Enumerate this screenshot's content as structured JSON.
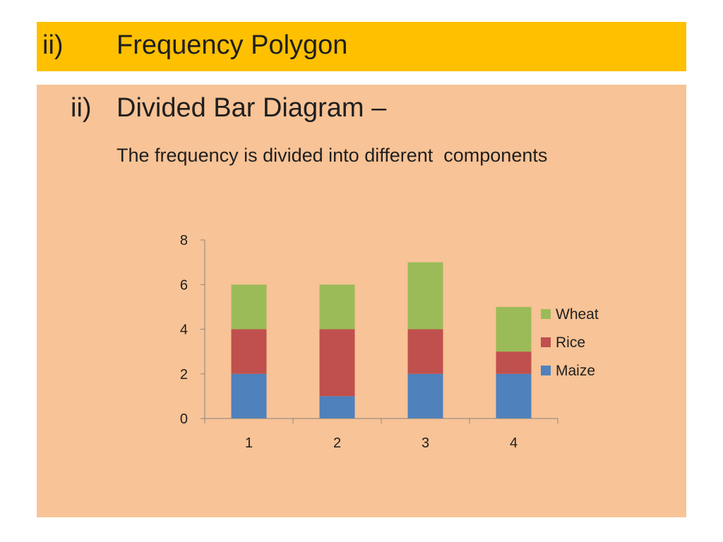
{
  "header": {
    "number": "ii)",
    "title": "Frequency Polygon"
  },
  "slide": {
    "number": "ii)",
    "title": "Divided Bar Diagram –",
    "description": "The frequency is divided into different  components"
  },
  "chart_data": {
    "type": "bar",
    "stacked": true,
    "categories": [
      "1",
      "2",
      "3",
      "4"
    ],
    "series": [
      {
        "name": "Maize",
        "values": [
          2,
          1,
          2,
          2
        ],
        "color": "#4f81bd"
      },
      {
        "name": "Rice",
        "values": [
          2,
          3,
          2,
          1
        ],
        "color": "#c0504d"
      },
      {
        "name": "Wheat",
        "values": [
          2,
          2,
          3,
          2
        ],
        "color": "#9bbb59"
      }
    ],
    "ylim": [
      0,
      8
    ],
    "yticks": [
      0,
      2,
      4,
      6,
      8
    ],
    "grid": false,
    "legend_position": "right",
    "legend_order": [
      "Wheat",
      "Rice",
      "Maize"
    ]
  }
}
